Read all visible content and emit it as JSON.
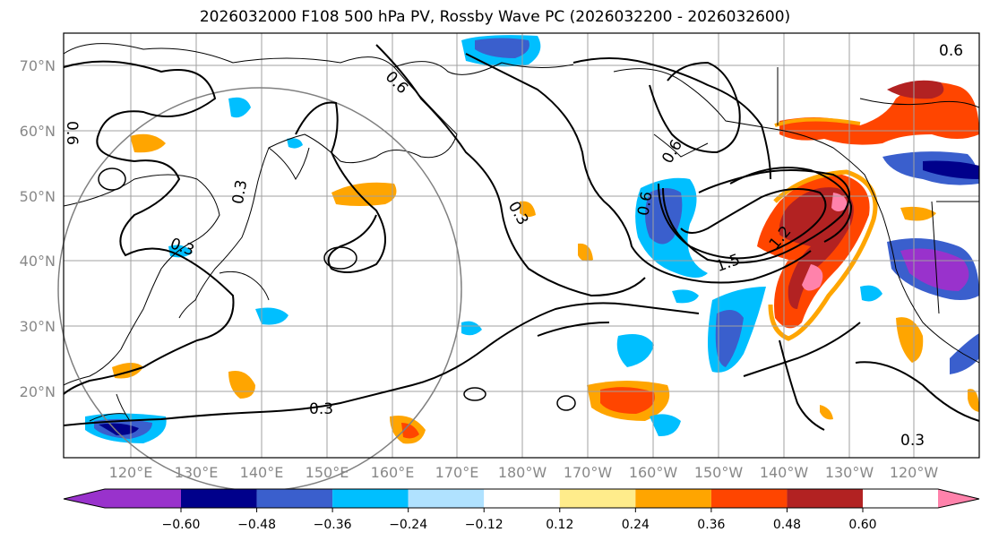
{
  "title": "2026032000 F108 500 hPa PV, Rossby Wave PC (2026032200 - 2026032600)",
  "map": {
    "lat_labels": [
      "70°N",
      "60°N",
      "50°N",
      "40°N",
      "30°N",
      "20°N"
    ],
    "lon_labels": [
      "120°E",
      "130°E",
      "140°E",
      "150°E",
      "160°E",
      "170°E",
      "180°W",
      "170°W",
      "160°W",
      "150°W",
      "140°W",
      "130°W",
      "120°W"
    ],
    "contour_labels": [
      "0.3",
      "0.3",
      "0.3",
      "0.6",
      "0.6",
      "0.6",
      "0.6",
      "1.5",
      "1.2",
      "0.3",
      "0.6",
      "0.3"
    ]
  },
  "colorbar": {
    "ticks": [
      "−0.60",
      "−0.48",
      "−0.36",
      "−0.24",
      "−0.12",
      "0.12",
      "0.24",
      "0.36",
      "0.48",
      "0.60"
    ],
    "colors": [
      "#9932cc",
      "#00008b",
      "#3a5fcd",
      "#00bfff",
      "#b0e2ff",
      "#ffffff",
      "#ffec8b",
      "#ffa500",
      "#ff4500",
      "#b22222",
      "#ff82ab"
    ]
  }
}
